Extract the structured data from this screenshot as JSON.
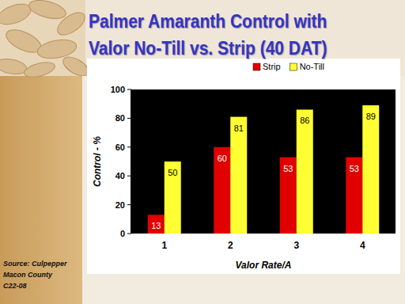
{
  "chart_data": {
    "type": "bar",
    "title": "Palmer Amaranth Control with\nValor No-Till vs. Strip (40 DAT)",
    "x_label": "Valor Rate/A",
    "y_label": "Control - %",
    "annotations": [
      "Source: Culpepper",
      "Macon County",
      "C22-08"
    ],
    "categories": [
      "1",
      "2",
      "3",
      "4"
    ],
    "series": [
      {
        "name": "Strip",
        "color": "#e00000",
        "values": [
          13,
          60,
          53,
          53
        ]
      },
      {
        "name": "No-Till",
        "color": "#ffff33",
        "values": [
          50,
          81,
          86,
          89
        ]
      }
    ],
    "ylim": [
      0,
      100
    ],
    "yticks": [
      0,
      20,
      40,
      60,
      80,
      100
    ],
    "grid": false,
    "legend": "top",
    "data_labels": true
  }
}
